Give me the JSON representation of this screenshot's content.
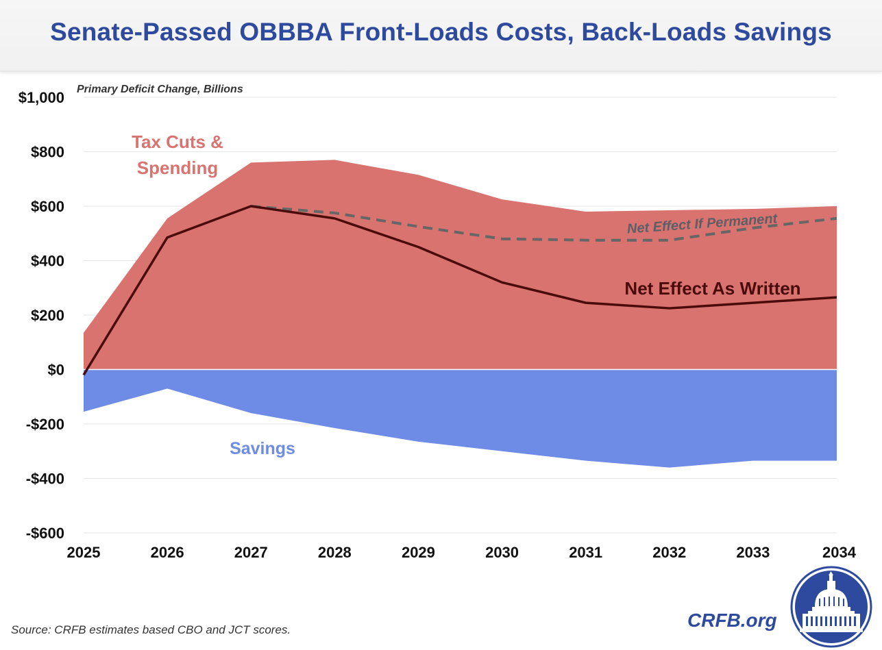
{
  "title": "Senate-Passed OBBBA Front-Loads Costs, Back-Loads Savings",
  "source": "Source: CRFB estimates based CBO and JCT scores.",
  "brand": "CRFB.org",
  "logo_icon": "capitol-dome-seal-icon",
  "colors": {
    "title": "#2e4a9e",
    "tax_cuts_area": "#d9736f",
    "tax_cuts_label": "#d9736f",
    "savings_area": "#6e8ce6",
    "savings_label": "#6e8ce6",
    "net_written_line": "#4a0b0b",
    "net_written_label": "#4a0b0b",
    "net_permanent_line": "#666666",
    "net_permanent_label": "#5e5e66",
    "grid": "#e6e6e6"
  },
  "chart_data": {
    "type": "area",
    "subtitle": "Primary Deficit Change, Billions",
    "x": [
      "2025",
      "2026",
      "2027",
      "2028",
      "2029",
      "2030",
      "2031",
      "2032",
      "2033",
      "2034"
    ],
    "ylim": [
      -600,
      1000
    ],
    "yticks": [
      1000,
      800,
      600,
      400,
      200,
      0,
      -200,
      -400,
      -600
    ],
    "ytick_labels": [
      "$1,000",
      "$800",
      "$600",
      "$400",
      "$200",
      "$0",
      "-$200",
      "-$400",
      "-$600"
    ],
    "grid": true,
    "series": [
      {
        "name": "Tax Cuts & Spending",
        "kind": "area",
        "values": [
          135,
          555,
          760,
          770,
          715,
          625,
          580,
          585,
          590,
          600
        ]
      },
      {
        "name": "Savings",
        "kind": "area",
        "values": [
          -155,
          -70,
          -160,
          -215,
          -265,
          -300,
          -335,
          -360,
          -335,
          -335
        ]
      },
      {
        "name": "Net Effect As Written",
        "kind": "line",
        "values": [
          -20,
          485,
          600,
          555,
          450,
          320,
          245,
          225,
          245,
          265
        ]
      },
      {
        "name": "Net Effect If Permanent",
        "kind": "dashed-line",
        "start_index": 2,
        "values": [
          null,
          null,
          600,
          575,
          525,
          480,
          475,
          475,
          520,
          555
        ]
      }
    ],
    "labels": {
      "tax_cuts_line1": "Tax Cuts &",
      "tax_cuts_line2": "Spending",
      "savings": "Savings",
      "net_written": "Net Effect As Written",
      "net_permanent": "Net Effect If Permanent"
    }
  }
}
